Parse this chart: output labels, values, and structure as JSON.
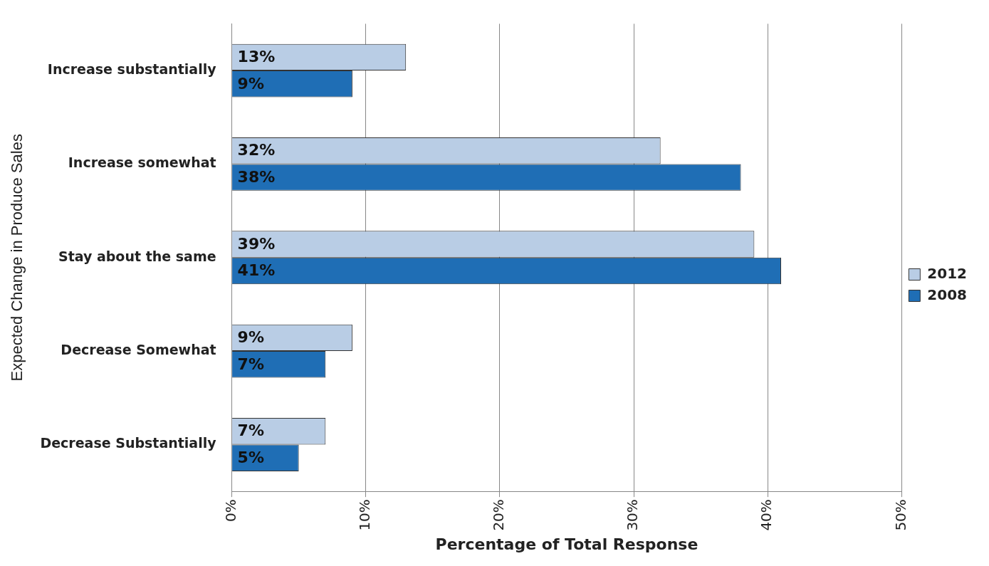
{
  "chart_data": {
    "type": "bar",
    "orientation": "horizontal",
    "xlabel": "Percentage of Total Response",
    "ylabel": "Expected Change in Produce Sales",
    "categories": [
      "Increase substantially",
      "Increase somewhat",
      "Stay about the same",
      "Decrease Somewhat",
      "Decrease Substantially"
    ],
    "series": [
      {
        "name": "2012",
        "color": "#b9cde5",
        "values": [
          13,
          32,
          39,
          9,
          7
        ],
        "value_labels": [
          "13%",
          "32%",
          "39%",
          "9%",
          "7%"
        ]
      },
      {
        "name": "2008",
        "color": "#1f6eb5",
        "values": [
          9,
          38,
          41,
          7,
          5
        ],
        "value_labels": [
          "9%",
          "38%",
          "41%",
          "7%",
          "5%"
        ]
      }
    ],
    "xlim": [
      0,
      50
    ],
    "xticks": [
      {
        "value": 0,
        "label": "0%"
      },
      {
        "value": 10,
        "label": "10%"
      },
      {
        "value": 20,
        "label": "20%"
      },
      {
        "value": 30,
        "label": "30%"
      },
      {
        "value": 40,
        "label": "40%"
      },
      {
        "value": 50,
        "label": "50%"
      }
    ],
    "grid": "x",
    "legend": "right"
  }
}
